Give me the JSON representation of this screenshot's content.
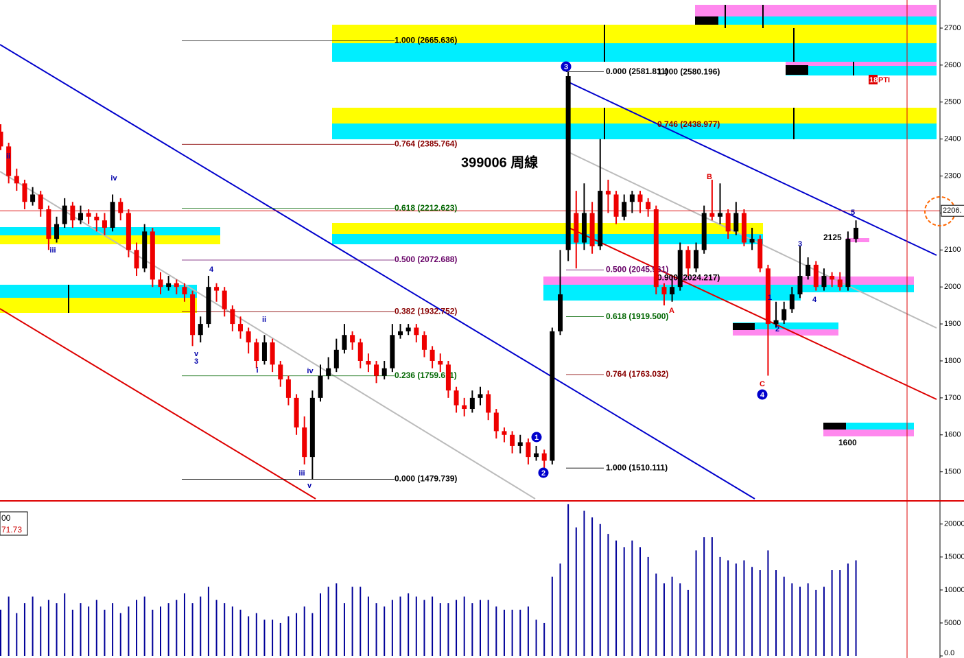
{
  "chart_data": {
    "type": "candlestick",
    "title": "399006 周線",
    "ylim": [
      1427,
      2776
    ],
    "yticks": [
      1500,
      1600,
      1700,
      1800,
      1900,
      2000,
      2100,
      2200,
      2300,
      2400,
      2500,
      2600,
      2700
    ],
    "up_color": "#000000",
    "down_color": "#ee0000",
    "open": [
      2420,
      2380,
      2300,
      2280,
      2230,
      2250,
      2210,
      2130,
      2170,
      2220,
      2180,
      2200,
      2190,
      2180,
      2160,
      2230,
      2200,
      2100,
      2050,
      2150,
      2020,
      2000,
      2010,
      2000,
      1980,
      1870,
      1900,
      2000,
      1990,
      1940,
      1900,
      1880,
      1850,
      1800,
      1850,
      1790,
      1750,
      1700,
      1620,
      1540,
      1700,
      1760,
      1780,
      1830,
      1870,
      1850,
      1800,
      1790,
      1760,
      1780,
      1870,
      1880,
      1890,
      1870,
      1830,
      1800,
      1790,
      1720,
      1680,
      1670,
      1700,
      1710,
      1660,
      1610,
      1600,
      1570,
      1580,
      1540,
      1550,
      1530,
      1880,
      2100,
      2200,
      2120,
      2200,
      2110,
      2260,
      2250,
      2190,
      2230,
      2250,
      2230,
      2210,
      2000,
      1980,
      2000,
      2100,
      2050,
      2100,
      2200,
      2190,
      2200,
      2150,
      2200,
      2120,
      2130,
      2050,
      1900,
      1910,
      1940,
      1980,
      2030,
      2060,
      2000,
      2030,
      2020,
      2000,
      2130
    ],
    "high": [
      2440,
      2390,
      2320,
      2290,
      2270,
      2260,
      2220,
      2190,
      2240,
      2230,
      2220,
      2210,
      2200,
      2200,
      2250,
      2240,
      2210,
      2120,
      2170,
      2160,
      2040,
      2030,
      2020,
      2010,
      1990,
      1920,
      2030,
      2010,
      2000,
      1950,
      1920,
      1890,
      1860,
      1870,
      1860,
      1800,
      1760,
      1710,
      1650,
      1720,
      1790,
      1810,
      1860,
      1900,
      1880,
      1860,
      1820,
      1800,
      1800,
      1900,
      1900,
      1900,
      1900,
      1880,
      1840,
      1820,
      1800,
      1730,
      1700,
      1720,
      1730,
      1720,
      1670,
      1620,
      1610,
      1600,
      1590,
      1570,
      1560,
      1890,
      2100,
      2582,
      2260,
      2280,
      2230,
      2400,
      2290,
      2260,
      2250,
      2260,
      2260,
      2240,
      2220,
      2010,
      2030,
      2120,
      2110,
      2120,
      2220,
      2290,
      2280,
      2210,
      2230,
      2210,
      2160,
      2140,
      2060,
      1960,
      1960,
      2000,
      2110,
      2080,
      2070,
      2050,
      2040,
      2040,
      2150,
      2180
    ],
    "low": [
      2370,
      2280,
      2260,
      2210,
      2220,
      2190,
      2100,
      2120,
      2160,
      2160,
      2170,
      2170,
      2150,
      2140,
      2150,
      2180,
      2080,
      2030,
      2040,
      2000,
      1980,
      1990,
      1980,
      1960,
      1840,
      1850,
      1890,
      1960,
      1920,
      1880,
      1860,
      1820,
      1780,
      1790,
      1770,
      1730,
      1680,
      1600,
      1520,
      1480,
      1690,
      1750,
      1770,
      1820,
      1830,
      1780,
      1770,
      1740,
      1750,
      1770,
      1860,
      1870,
      1850,
      1810,
      1780,
      1770,
      1700,
      1660,
      1650,
      1660,
      1680,
      1640,
      1590,
      1580,
      1550,
      1550,
      1520,
      1530,
      1510,
      1520,
      1870,
      2070,
      2050,
      2100,
      2090,
      2100,
      2200,
      2170,
      2180,
      2200,
      2200,
      2190,
      1980,
      1950,
      1960,
      1990,
      2030,
      2040,
      2090,
      2180,
      2170,
      2130,
      2140,
      2110,
      2100,
      2040,
      1760,
      1890,
      1900,
      1930,
      1970,
      2020,
      1990,
      1990,
      2000,
      1990,
      1990,
      2120
    ],
    "close": [
      2380,
      2300,
      2280,
      2230,
      2250,
      2210,
      2130,
      2170,
      2220,
      2180,
      2200,
      2190,
      2180,
      2160,
      2230,
      2200,
      2100,
      2050,
      2150,
      2020,
      2000,
      2010,
      2000,
      1980,
      1870,
      1900,
      2000,
      1990,
      1940,
      1900,
      1880,
      1850,
      1800,
      1850,
      1790,
      1750,
      1700,
      1620,
      1540,
      1700,
      1760,
      1780,
      1830,
      1870,
      1850,
      1800,
      1790,
      1760,
      1780,
      1870,
      1880,
      1890,
      1870,
      1830,
      1800,
      1790,
      1720,
      1680,
      1670,
      1700,
      1710,
      1660,
      1610,
      1600,
      1570,
      1580,
      1540,
      1550,
      1530,
      1880,
      1980,
      2570,
      2120,
      2200,
      2110,
      2260,
      2250,
      2190,
      2230,
      2250,
      2230,
      2210,
      2000,
      1980,
      2000,
      2100,
      2050,
      2100,
      2200,
      2190,
      2200,
      2150,
      2200,
      2120,
      2130,
      2050,
      1900,
      1910,
      1940,
      1980,
      2030,
      2060,
      2000,
      2030,
      2020,
      2000,
      2130,
      2160
    ],
    "volume": {
      "color": "#000099",
      "ylim": [
        0,
        23200
      ],
      "yticks": [
        {
          "value": 0,
          "label": "0.0"
        },
        5000,
        10000,
        15000,
        20000
      ],
      "values": [
        7000,
        9000,
        6500,
        8000,
        9000,
        7500,
        8500,
        8000,
        9500,
        7000,
        8000,
        7500,
        8500,
        7000,
        8000,
        6500,
        7500,
        8500,
        9000,
        7000,
        7500,
        8000,
        8500,
        9500,
        8000,
        9000,
        10500,
        8500,
        8000,
        7500,
        7000,
        6000,
        6500,
        5500,
        5500,
        5000,
        6000,
        6500,
        7500,
        6500,
        9500,
        10500,
        11000,
        8000,
        10500,
        10500,
        9000,
        8000,
        7500,
        8500,
        9000,
        9500,
        9000,
        8500,
        9000,
        8000,
        8000,
        8500,
        9000,
        8000,
        8500,
        8500,
        7500,
        7000,
        7000,
        7000,
        7500,
        5500,
        5000,
        12000,
        14000,
        23000,
        19500,
        22000,
        21000,
        20000,
        18500,
        17500,
        16500,
        17500,
        16500,
        15000,
        12500,
        11000,
        12000,
        11000,
        10000,
        16000,
        18000,
        18000,
        15000,
        14500,
        14000,
        14500,
        13500,
        13000,
        16000,
        13000,
        12000,
        11000,
        10500,
        11000,
        10000,
        10500,
        13000,
        13000,
        14000,
        14500
      ],
      "box_labels": [
        "00",
        "71.73"
      ]
    },
    "fib_left": [
      {
        "label": "1.000 (2665.636)",
        "value": 2665.636,
        "color": "#000000"
      },
      {
        "label": "0.764 (2385.764)",
        "value": 2385.764,
        "color": "#880000"
      },
      {
        "label": "0.618 (2212.623)",
        "value": 2212.623,
        "color": "#006600"
      },
      {
        "label": "0.500 (2072.688)",
        "value": 2072.688,
        "color": "#660066"
      },
      {
        "label": "0.382 (1932.752)",
        "value": 1932.752,
        "color": "#880000"
      },
      {
        "label": "0.236 (1759.611)",
        "value": 1759.611,
        "color": "#006600"
      },
      {
        "label": "0.000 (1479.739)",
        "value": 1479.739,
        "color": "#000000"
      }
    ],
    "fib_mid": [
      {
        "label": "0.000 (2581.811)",
        "value": 2581.811,
        "color": "#000000"
      },
      {
        "label": "0.500 (2045.961)",
        "value": 2045.961,
        "color": "#660066"
      },
      {
        "label": "0.618 (1919.500)",
        "value": 1919.5,
        "color": "#006600"
      },
      {
        "label": "0.764 (1763.032)",
        "value": 1763.032,
        "color": "#880000"
      },
      {
        "label": "1.000 (1510.111)",
        "value": 1510.111,
        "color": "#000000"
      }
    ],
    "fib_right": [
      {
        "label": "1.000 (2580.196)",
        "value": 2580.196,
        "color": "#000000"
      },
      {
        "label": "0.746 (2438.977)",
        "value": 2438.977,
        "color": "#880000"
      },
      {
        "label": "0.900 (2024.217)",
        "value": 2024.217,
        "color": "#000000"
      }
    ],
    "wave_labels": [
      "ii",
      "iii",
      "iv",
      "v",
      "3",
      "4",
      "i",
      "ii",
      "iv",
      "iii",
      "v",
      "1",
      "2",
      "3",
      "4",
      "5"
    ],
    "abc_labels": [
      "A",
      "B",
      "C"
    ],
    "circled_labels": [
      "1",
      "2",
      "3",
      "4"
    ],
    "notes": [
      "2125",
      "1600"
    ],
    "pti": [
      "18",
      "PTI"
    ],
    "current_price": 2206,
    "current_price_label": "2206."
  }
}
